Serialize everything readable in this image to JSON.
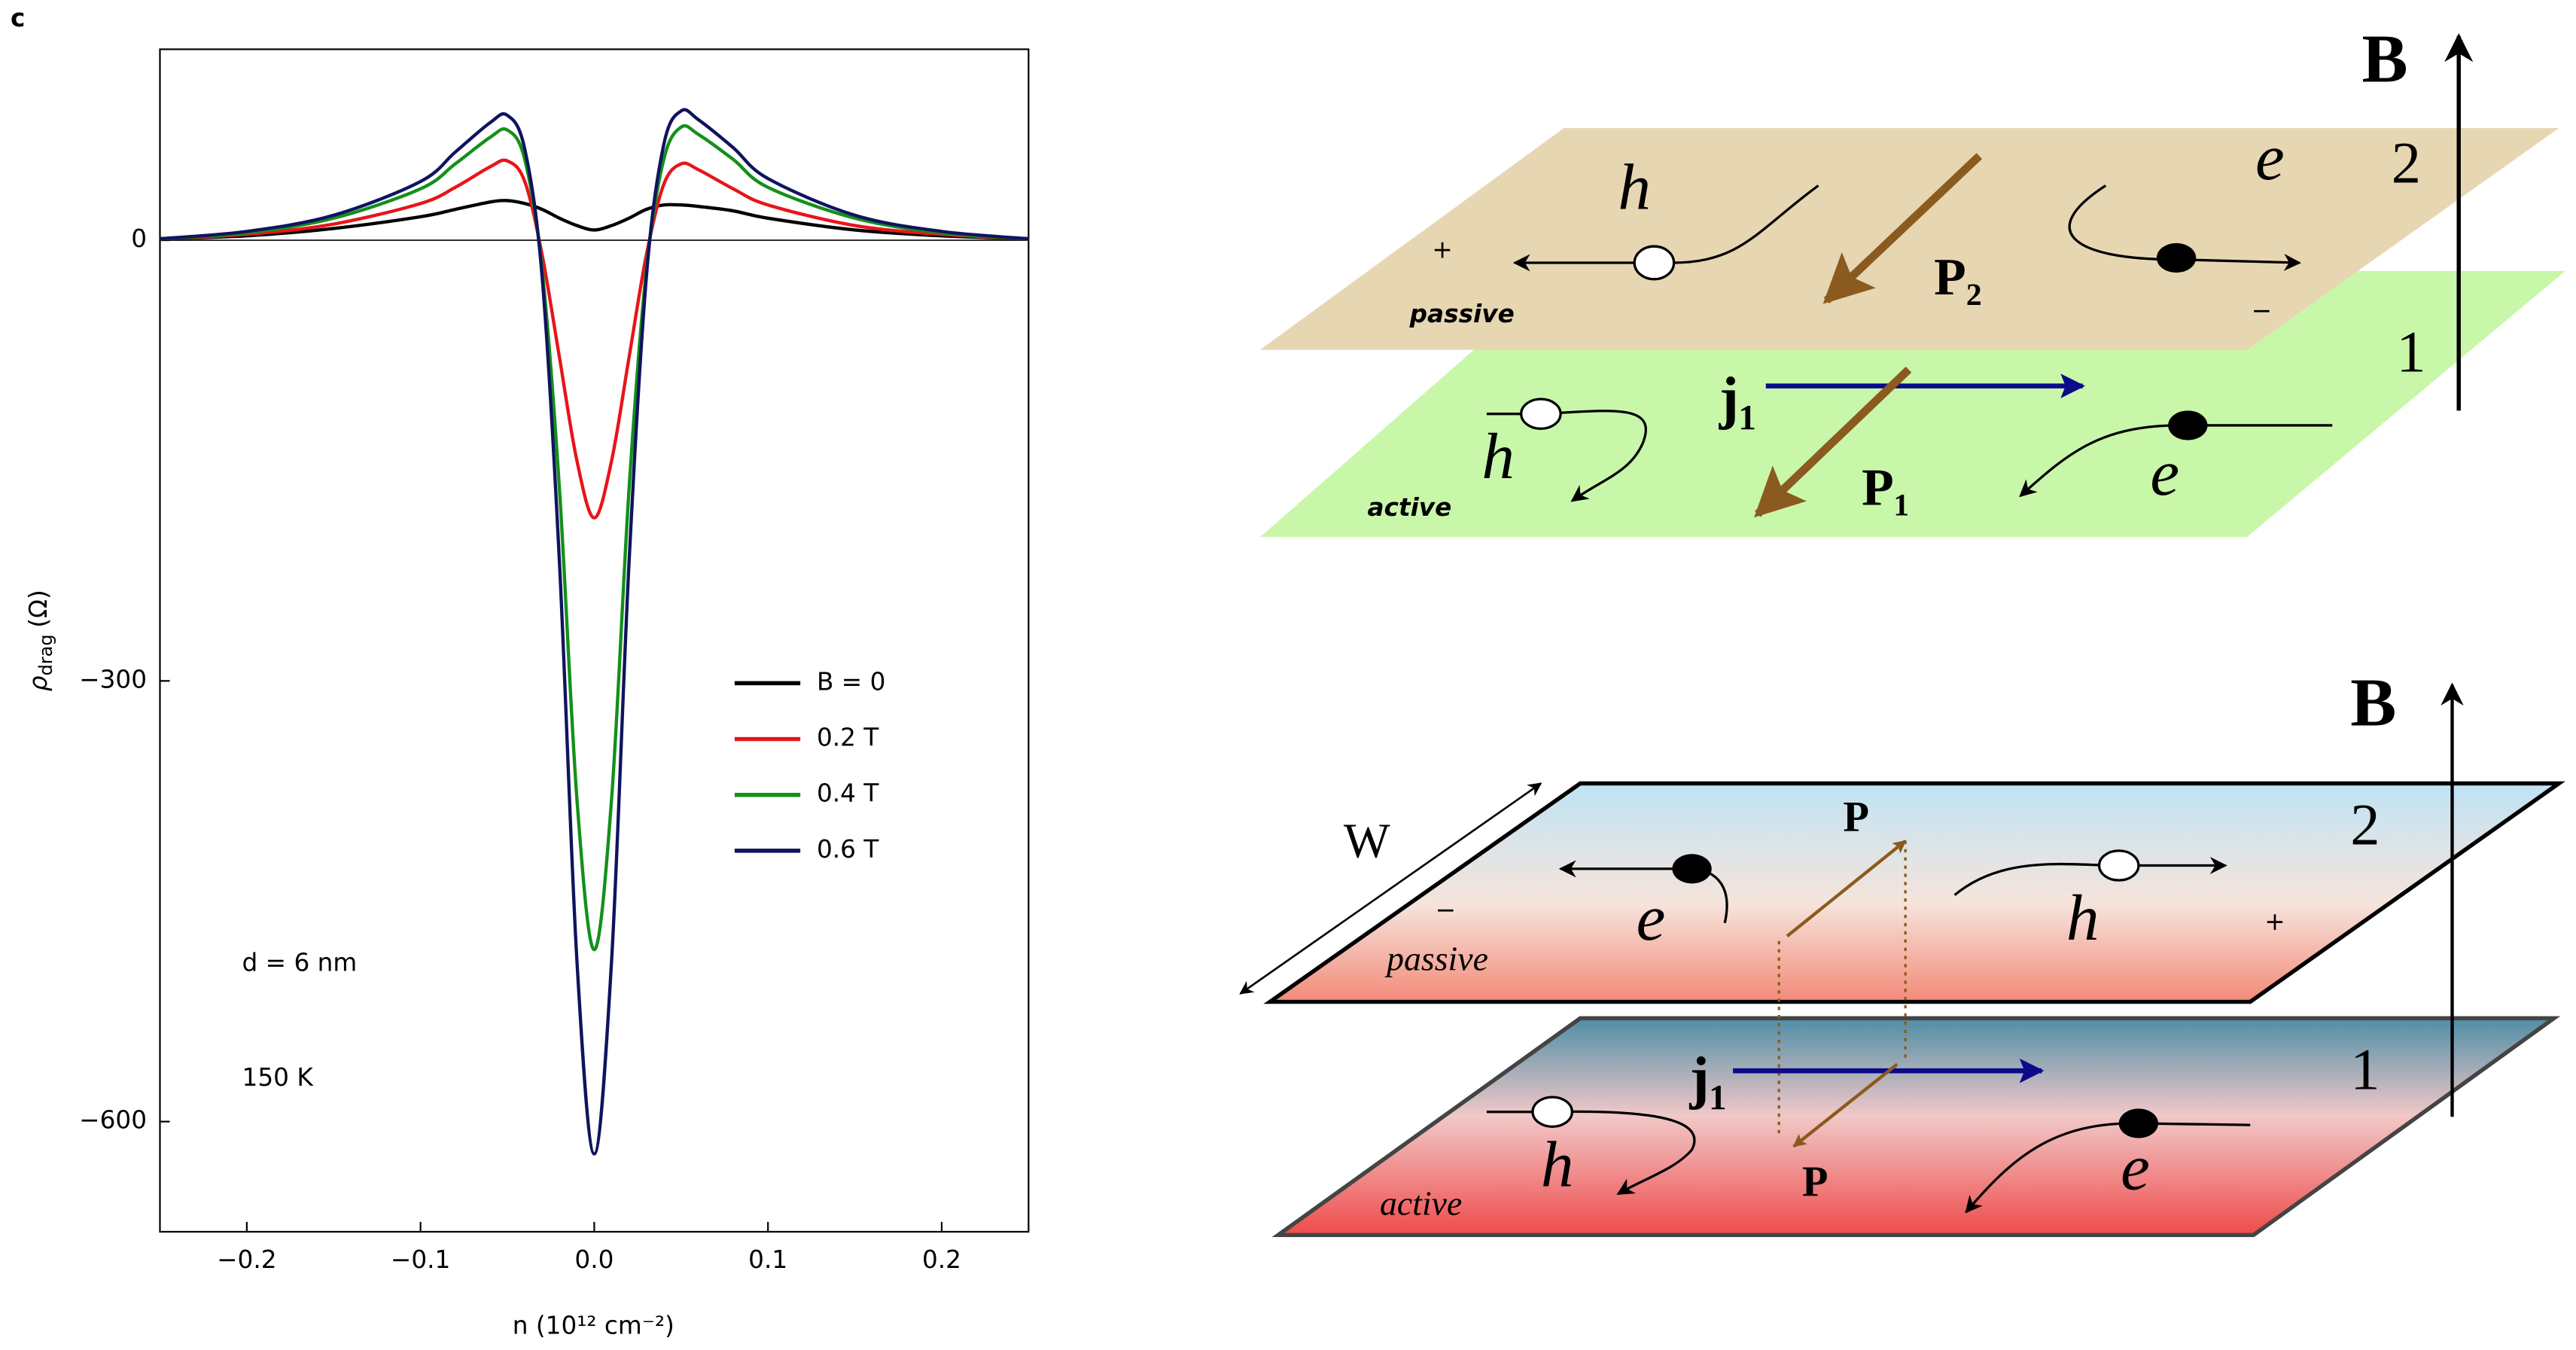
{
  "panel_label": "c",
  "chart_data": {
    "type": "line",
    "xlabel": "n (10¹² cm⁻²)",
    "ylabel": {
      "symbol": "ρ",
      "subscript": "drag",
      "unit": "(Ω)"
    },
    "x": [
      -0.25,
      -0.2,
      -0.15,
      -0.1,
      -0.08,
      -0.06,
      -0.05,
      -0.04,
      -0.03,
      -0.02,
      -0.01,
      0,
      0.01,
      0.02,
      0.03,
      0.04,
      0.05,
      0.06,
      0.08,
      0.1,
      0.15,
      0.2,
      0.25
    ],
    "series": [
      {
        "name": "B = 0",
        "color": "#000000",
        "values": [
          1,
          3,
          8,
          16,
          21,
          26,
          27,
          25,
          21,
          15,
          10,
          7,
          10,
          15,
          21,
          24,
          24,
          23,
          20,
          15,
          7,
          3,
          1
        ]
      },
      {
        "name": "0.2 T",
        "color": "#e8141b",
        "values": [
          1,
          4,
          11,
          25,
          36,
          50,
          54,
          40,
          -10,
          -80,
          -150,
          -189,
          -150,
          -80,
          -10,
          38,
          52,
          48,
          35,
          24,
          10,
          4,
          1
        ]
      },
      {
        "name": "0.4 T",
        "color": "#13901a",
        "values": [
          1,
          5,
          15,
          35,
          52,
          70,
          75,
          55,
          -20,
          -170,
          -380,
          -483,
          -380,
          -170,
          -20,
          55,
          77,
          72,
          55,
          36,
          15,
          5,
          1
        ]
      },
      {
        "name": "0.6 T",
        "color": "#10145e",
        "values": [
          1,
          6,
          17,
          40,
          60,
          80,
          85,
          62,
          -25,
          -220,
          -490,
          -622,
          -490,
          -220,
          -25,
          65,
          88,
          82,
          63,
          42,
          17,
          6,
          1
        ]
      }
    ],
    "xlim": [
      -0.25,
      0.25
    ],
    "xticks": [
      {
        "value": -0.2,
        "label": "−0.2"
      },
      {
        "value": -0.1,
        "label": "−0.1"
      },
      {
        "value": 0,
        "label": "0.0"
      },
      {
        "value": 0.1,
        "label": "0.1"
      },
      {
        "value": 0.2,
        "label": "0.2"
      }
    ],
    "ylim": [
      -675,
      130
    ],
    "yticks": [
      0,
      {
        "value": -300,
        "label": "−300"
      },
      {
        "value": -600,
        "label": "−600"
      }
    ],
    "zero_line": true,
    "legend": "center right",
    "annotations": [
      "d = 6 nm",
      "150 K"
    ]
  },
  "diagram_top": {
    "field": "B",
    "layer_2": {
      "number": "2",
      "name": "passive",
      "hole": "h",
      "electron": "e",
      "plus": "+",
      "minus": "−",
      "polarization": "P₂"
    },
    "layer_1": {
      "number": "1",
      "name": "active",
      "current": "j₁",
      "hole": "h",
      "electron": "e",
      "polarization": "P₁"
    }
  },
  "diagram_bottom": {
    "field": "B",
    "width": "W",
    "layer_2": {
      "number": "2",
      "name": "passive",
      "electron": "e",
      "hole": "h",
      "minus": "−",
      "plus": "+",
      "polarization": "P"
    },
    "layer_1": {
      "number": "1",
      "name": "active",
      "current": "j₁",
      "hole": "h",
      "electron": "e",
      "polarization": "P"
    }
  }
}
